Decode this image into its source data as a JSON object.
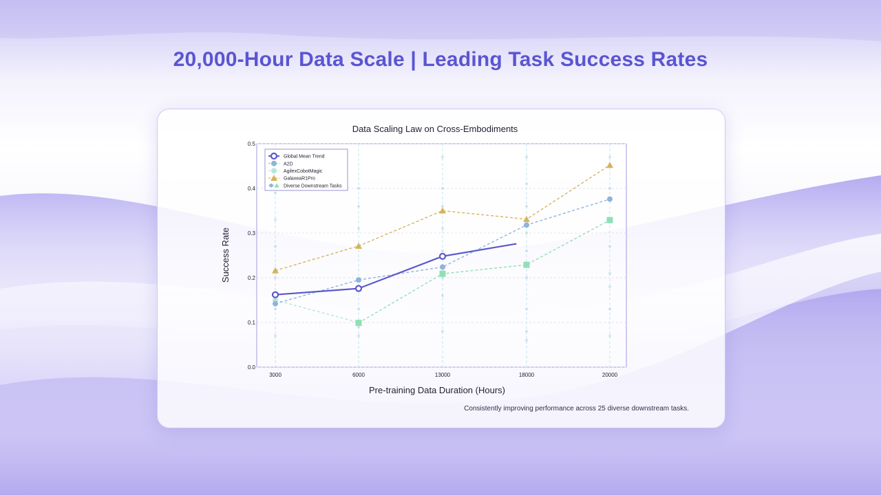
{
  "headline": "20,000-Hour Data Scale | Leading Task Success Rates",
  "caption": "Consistently improving performance across 25 diverse downstream tasks.",
  "colors": {
    "accent": "#5a55d2",
    "global": "#5b57c9",
    "a2d": "#8fb4dc",
    "agilex": "#b7e5dd",
    "galaxea": "#d4b45c",
    "diverse": "#8fe0b4"
  },
  "chart_data": {
    "type": "line",
    "title": "Data Scaling Law on Cross-Embodiments",
    "xlabel": "Pre-training Data Duration (Hours)",
    "ylabel": "Success Rate",
    "categories": [
      "3000",
      "6000",
      "13000",
      "18000",
      "20000"
    ],
    "ylim": [
      0,
      0.5
    ],
    "yticks": [
      "0.0",
      "0.1",
      "0.2",
      "0.3",
      "0.4",
      "0.5"
    ],
    "grid": true,
    "legend_position": "top-left",
    "series": [
      {
        "name": "Global Mean Trend",
        "marker": "open-circle",
        "style": "solid",
        "color_key": "global",
        "values": [
          0.162,
          0.176,
          0.248,
          0.276,
          null
        ],
        "end_offset": 0.88
      },
      {
        "name": "A2D",
        "marker": "circle",
        "style": "dashed",
        "color_key": "a2d",
        "values": [
          0.142,
          0.195,
          0.224,
          0.318,
          0.376
        ]
      },
      {
        "name": "AgilexCobotMagic",
        "marker": "circle",
        "style": "dashed",
        "color_key": "agilex",
        "values": [
          0.15,
          0.1,
          null,
          null,
          null
        ]
      },
      {
        "name": "GalaxeaR1Pro",
        "marker": "triangle",
        "style": "dashed",
        "color_key": "galaxea",
        "values": [
          0.216,
          0.271,
          0.35,
          0.331,
          0.452
        ]
      },
      {
        "name": "Diverse Downstream Tasks",
        "marker": "square",
        "style": "dashed",
        "color_key": "diverse",
        "values": [
          null,
          0.099,
          0.209,
          0.229,
          0.329
        ]
      }
    ],
    "task_points": [
      [
        0.07,
        0.13,
        0.15,
        0.2,
        0.27,
        0.33,
        0.39
      ],
      [
        0.07,
        0.09,
        0.13,
        0.18,
        0.27,
        0.31,
        0.36,
        0.4
      ],
      [
        0.08,
        0.16,
        0.2,
        0.26,
        0.31,
        0.36,
        0.4,
        0.47
      ],
      [
        0.06,
        0.08,
        0.13,
        0.2,
        0.26,
        0.3,
        0.36,
        0.41,
        0.47
      ],
      [
        0.07,
        0.13,
        0.18,
        0.21,
        0.27,
        0.33,
        0.4,
        0.47
      ]
    ]
  }
}
